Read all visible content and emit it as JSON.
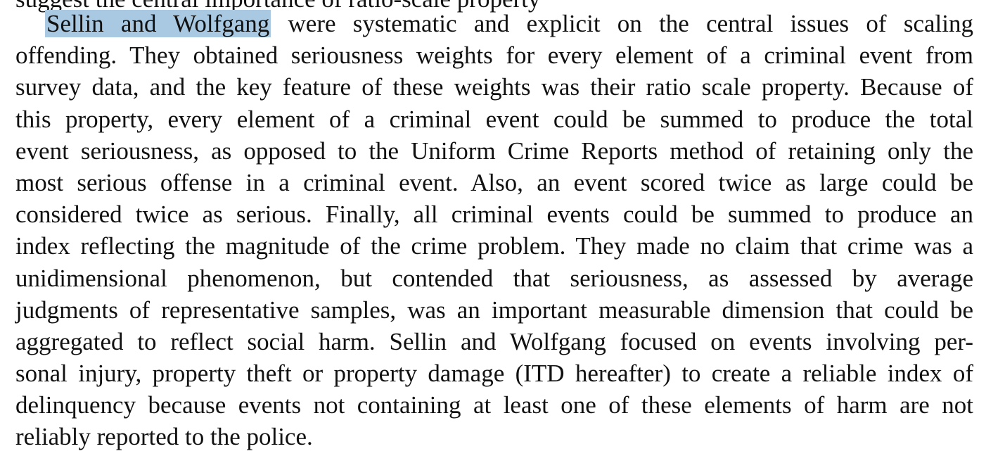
{
  "document": {
    "cutoff_line": "suggest the central importance of ratio-scale property",
    "highlighted_text": "Sellin and Wolfgang",
    "lines": [
      " were systematic and explicit on the central issues of scaling",
      "offending. They obtained seriousness weights for every element of a criminal event from",
      "survey data, and the key feature of these weights was their ratio scale property. Because of",
      "this property, every element of a criminal event could be summed to produce the total",
      "event seriousness, as opposed to the Uniform Crime Reports method of retaining only the",
      "most serious offense in a criminal event. Also, an event scored twice as large could be",
      "considered twice as serious. Finally, all criminal events could be summed to produce an",
      "index reflecting the magnitude of the crime problem. They made no claim that crime was a",
      "unidimensional phenomenon, but contended that seriousness, as assessed by average",
      "judgments of representative samples, was an important measurable dimension that could be",
      "aggregated to reflect social harm. Sellin and Wolfgang focused on events involving per-",
      "sonal injury, property theft or property damage (ITD hereafter) to create a reliable index of",
      "delinquency because events not containing at least one of these elements of harm are not",
      "reliably reported to the police."
    ]
  },
  "colors": {
    "highlight": "#a9c9e3",
    "text": "#111111",
    "background": "#ffffff"
  }
}
